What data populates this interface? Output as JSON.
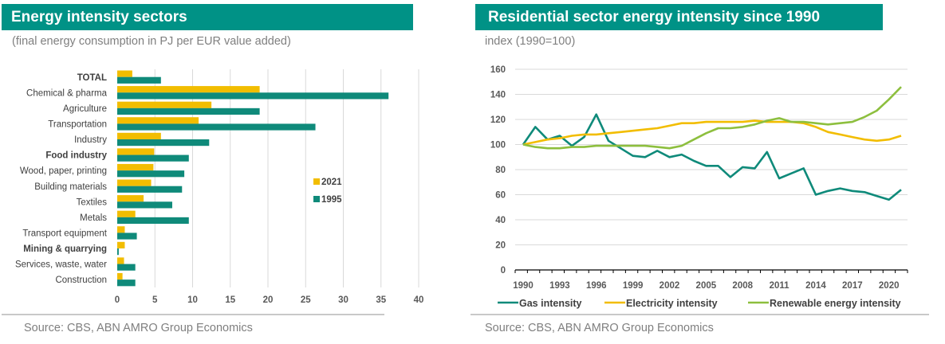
{
  "colors": {
    "header": "#009286",
    "teal": "#0f8a7a",
    "yellow": "#f2bd00",
    "green": "#8dbf3e",
    "grid": "#d9d9d9",
    "axis": "#000000"
  },
  "left": {
    "title": "Energy intensity sectors",
    "subtitle": "(final energy consumption in PJ per EUR value added)",
    "source": "Source: CBS, ABN AMRO  Group Economics"
  },
  "right": {
    "title": "Residential sector energy intensity since 1990",
    "subtitle": "index (1990=100)",
    "source": "Source: CBS, ABN AMRO Group Economics"
  },
  "chart_data": [
    {
      "type": "bar",
      "orientation": "horizontal",
      "title": "Energy intensity sectors",
      "subtitle": "(final energy consumption in PJ per EUR value added)",
      "xlabel": "",
      "ylabel": "",
      "xlim": [
        0,
        40
      ],
      "xticks": [
        0,
        5,
        10,
        15,
        20,
        25,
        30,
        35,
        40
      ],
      "grid": true,
      "legend_position": "right",
      "categories": [
        "TOTAL",
        "Chemical & pharma",
        "Agriculture",
        "Transportation",
        "Industry",
        "Food industry",
        "Wood, paper, printing",
        "Building materials",
        "Textiles",
        "Metals",
        "Transport equipment",
        "Mining & quarrying",
        "Services, waste, water",
        "Construction"
      ],
      "bold_categories": [
        "TOTAL",
        "Food industry",
        "Mining & quarrying"
      ],
      "series": [
        {
          "name": "2021",
          "color": "#f2bd00",
          "values": [
            2.0,
            18.9,
            12.5,
            10.8,
            5.8,
            4.9,
            4.8,
            4.5,
            3.5,
            2.4,
            1.0,
            1.0,
            0.9,
            0.7
          ]
        },
        {
          "name": "1995",
          "color": "#0f8a7a",
          "values": [
            5.8,
            36.0,
            18.9,
            26.3,
            12.2,
            9.5,
            8.9,
            8.6,
            7.3,
            9.5,
            2.6,
            0.2,
            2.4,
            2.4
          ]
        }
      ]
    },
    {
      "type": "line",
      "title": "Residential sector energy intensity since 1990",
      "subtitle": "index (1990=100)",
      "xlabel": "",
      "ylabel": "",
      "ylim": [
        0,
        160
      ],
      "yticks": [
        0,
        20,
        40,
        60,
        80,
        100,
        120,
        140,
        160
      ],
      "xticks": [
        1990,
        1993,
        1996,
        1999,
        2002,
        2005,
        2008,
        2011,
        2014,
        2017,
        2020
      ],
      "grid": true,
      "legend_position": "bottom",
      "x": [
        1990,
        1991,
        1992,
        1993,
        1994,
        1995,
        1996,
        1997,
        1998,
        1999,
        2000,
        2001,
        2002,
        2003,
        2004,
        2005,
        2006,
        2007,
        2008,
        2009,
        2010,
        2011,
        2012,
        2013,
        2014,
        2015,
        2016,
        2017,
        2018,
        2019,
        2020,
        2021
      ],
      "series": [
        {
          "name": "Gas intensity",
          "color": "#0f8a7a",
          "values": [
            100,
            114,
            104,
            107,
            99,
            106,
            124,
            103,
            97,
            91,
            90,
            95,
            90,
            92,
            87,
            83,
            83,
            74,
            82,
            81,
            94,
            73,
            77,
            81,
            60,
            63,
            65,
            63,
            62,
            59,
            56,
            64
          ]
        },
        {
          "name": "Electricity intensity",
          "color": "#f2bd00",
          "values": [
            100,
            102,
            104,
            105,
            107,
            108,
            108,
            109,
            110,
            111,
            112,
            113,
            115,
            117,
            117,
            118,
            118,
            118,
            118,
            119,
            118,
            118,
            118,
            117,
            114,
            110,
            108,
            106,
            104,
            103,
            104,
            107
          ]
        },
        {
          "name": "Renewable energy intensity",
          "color": "#8dbf3e",
          "values": [
            100,
            98,
            97,
            97,
            98,
            98,
            99,
            99,
            99,
            99,
            99,
            98,
            97,
            99,
            104,
            109,
            113,
            113,
            114,
            116,
            119,
            121,
            118,
            118,
            117,
            116,
            117,
            118,
            122,
            127,
            136,
            146
          ]
        }
      ]
    }
  ]
}
